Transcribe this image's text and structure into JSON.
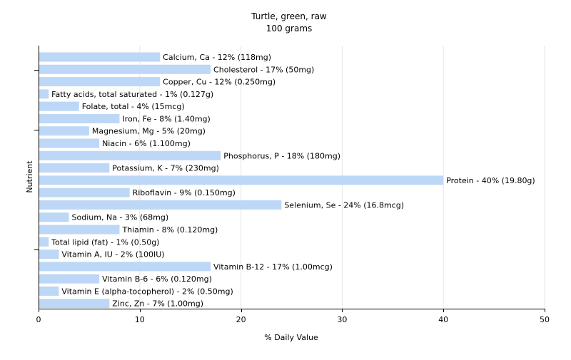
{
  "chart_data": {
    "type": "bar",
    "orientation": "horizontal",
    "title": "Turtle, green, raw",
    "subtitle": "100 grams",
    "xlabel": "% Daily Value",
    "ylabel": "Nutrient",
    "xlim": [
      0,
      50
    ],
    "xticks": [
      0,
      10,
      20,
      30,
      40,
      50
    ],
    "grid": true,
    "bar_color": "#bdd7f7",
    "categories": [
      "Calcium, Ca",
      "Cholesterol",
      "Copper, Cu",
      "Fatty acids, total saturated",
      "Folate, total",
      "Iron, Fe",
      "Magnesium, Mg",
      "Niacin",
      "Phosphorus, P",
      "Potassium, K",
      "Protein",
      "Riboflavin",
      "Selenium, Se",
      "Sodium, Na",
      "Thiamin",
      "Total lipid (fat)",
      "Vitamin A, IU",
      "Vitamin B-12",
      "Vitamin B-6",
      "Vitamin E (alpha-tocopherol)",
      "Zinc, Zn"
    ],
    "values": [
      12,
      17,
      12,
      1,
      4,
      8,
      5,
      6,
      18,
      7,
      40,
      9,
      24,
      3,
      8,
      1,
      2,
      17,
      6,
      2,
      7
    ],
    "labels": [
      "Calcium, Ca - 12% (118mg)",
      "Cholesterol - 17% (50mg)",
      "Copper, Cu - 12% (0.250mg)",
      "Fatty acids, total saturated - 1% (0.127g)",
      "Folate, total - 4% (15mcg)",
      "Iron, Fe - 8% (1.40mg)",
      "Magnesium, Mg - 5% (20mg)",
      "Niacin - 6% (1.100mg)",
      "Phosphorus, P - 18% (180mg)",
      "Potassium, K - 7% (230mg)",
      "Protein - 40% (19.80g)",
      "Riboflavin - 9% (0.150mg)",
      "Selenium, Se - 24% (16.8mcg)",
      "Sodium, Na - 3% (68mg)",
      "Thiamin - 8% (0.120mg)",
      "Total lipid (fat) - 1% (0.50g)",
      "Vitamin A, IU - 2% (100IU)",
      "Vitamin B-12 - 17% (1.00mcg)",
      "Vitamin B-6 - 6% (0.120mg)",
      "Vitamin E (alpha-tocopherol) - 2% (0.50mg)",
      "Zinc, Zn - 7% (1.00mg)"
    ]
  }
}
